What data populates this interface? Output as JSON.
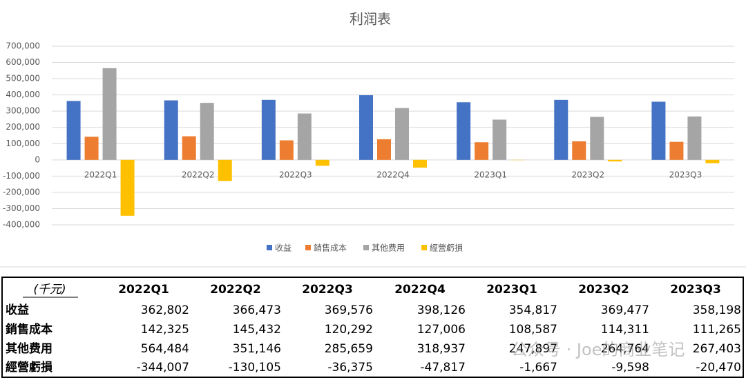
{
  "chart_data": {
    "type": "bar",
    "title": "利润表",
    "categories": [
      "2022Q1",
      "2022Q2",
      "2022Q3",
      "2022Q4",
      "2023Q1",
      "2023Q2",
      "2023Q3"
    ],
    "series": [
      {
        "name": "收益",
        "color": "#4472c4",
        "values": [
          362802,
          366473,
          369576,
          398126,
          354817,
          369477,
          358198
        ]
      },
      {
        "name": "銷售成本",
        "color": "#ed7d31",
        "values": [
          142325,
          145432,
          120292,
          127006,
          108587,
          114311,
          111265
        ]
      },
      {
        "name": "其他费用",
        "color": "#a5a5a5",
        "values": [
          564484,
          351146,
          285659,
          318937,
          247897,
          264764,
          267403
        ]
      },
      {
        "name": "經營虧損",
        "color": "#ffc000",
        "values": [
          -344007,
          -130105,
          -36375,
          -47817,
          -1667,
          -9598,
          -20470
        ]
      }
    ],
    "ylim": [
      -400000,
      700000
    ],
    "yticks": [
      {
        "value": -400000,
        "label": "-400,000"
      },
      {
        "value": -300000,
        "label": "-300,000"
      },
      {
        "value": -200000,
        "label": "-200,000"
      },
      {
        "value": -100000,
        "label": "-100,000"
      },
      0,
      {
        "value": 100000,
        "label": "100,000"
      },
      {
        "value": 200000,
        "label": "200,000"
      },
      {
        "value": 300000,
        "label": "300,000"
      },
      {
        "value": 400000,
        "label": "400,000"
      },
      {
        "value": 500000,
        "label": "500,000"
      },
      {
        "value": 600000,
        "label": "600,000"
      },
      {
        "value": 700000,
        "label": "700,000"
      }
    ],
    "grid": true,
    "legend": "bottom"
  },
  "table": {
    "header": [
      "(千元)",
      "2022Q1",
      "2022Q2",
      "2022Q3",
      "2022Q4",
      "2023Q1",
      "2023Q2",
      "2023Q3"
    ],
    "rows": [
      [
        "收益",
        "362,802",
        "366,473",
        "369,576",
        "398,126",
        "354,817",
        "369,477",
        "358,198"
      ],
      [
        "銷售成本",
        "142,325",
        "145,432",
        "120,292",
        "127,006",
        "108,587",
        "114,311",
        "111,265"
      ],
      [
        "其他费用",
        "564,484",
        "351,146",
        "285,659",
        "318,937",
        "247,897",
        "264,764",
        "267,403"
      ],
      [
        "經營虧損",
        "-344,007",
        "-130,105",
        "-36,375",
        "-47,817",
        "-1,667",
        "-9,598",
        "-20,470"
      ]
    ]
  },
  "watermark": "公众号 · Joe的商业笔记"
}
